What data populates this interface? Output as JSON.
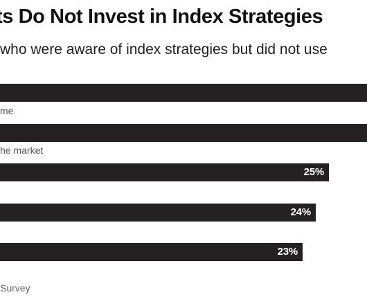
{
  "title": "ts Do Not Invest in Index Strategies",
  "subtitle": "who were aware of index strategies but did not use",
  "source": "Survey",
  "colors": {
    "bar": "#252122",
    "bar_value_text": "#ffffff",
    "label_text": "#555555"
  },
  "chart_data": {
    "type": "bar",
    "orientation": "horizontal",
    "title": "ts Do Not Invest in Index Strategies",
    "subtitle": "who were aware of index strategies but did not use",
    "categories": [
      "",
      "me",
      "he market",
      "",
      ""
    ],
    "values": [
      null,
      null,
      25,
      24,
      23
    ],
    "value_labels": [
      "",
      "",
      "25%",
      "24%",
      "23%"
    ],
    "unit": "%",
    "grid": false,
    "legend": "none"
  }
}
